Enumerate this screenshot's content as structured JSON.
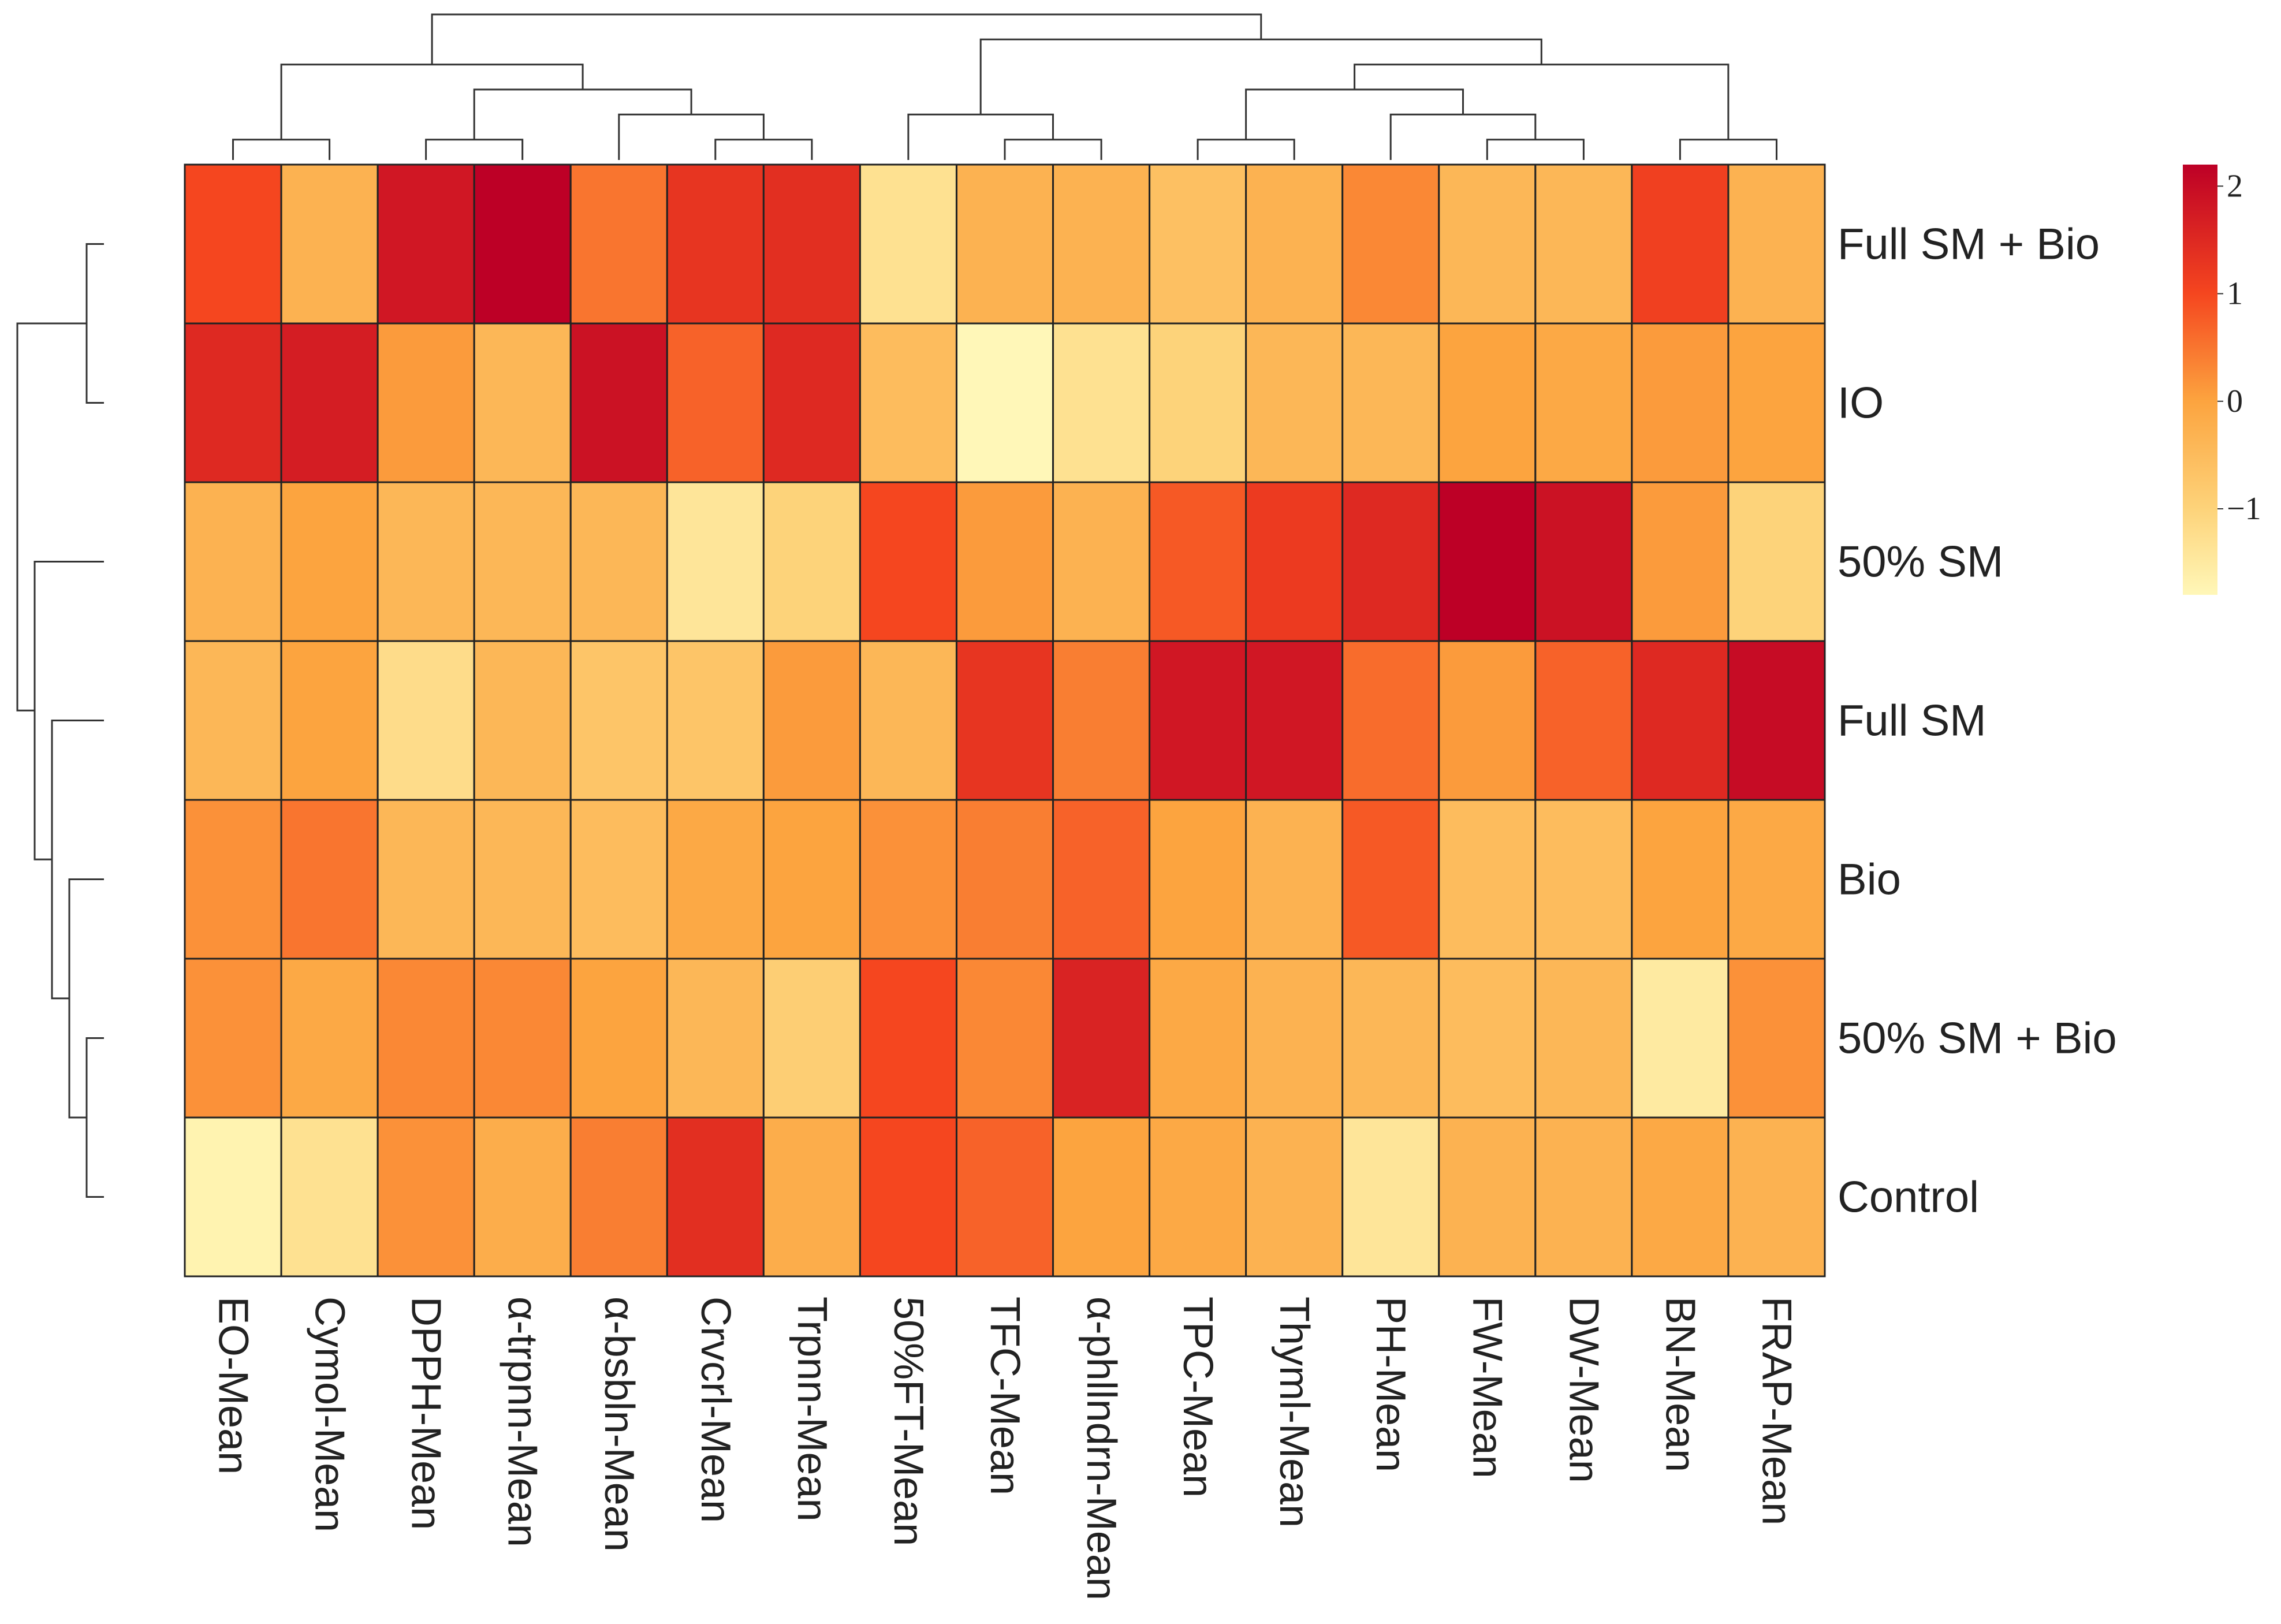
{
  "chart_data": {
    "type": "heatmap",
    "rows": [
      "Full SM + Bio",
      "IO",
      "50% SM",
      "Full SM",
      "Bio",
      "50% SM + Bio",
      "Control"
    ],
    "columns": [
      "EO-Mean",
      "Cymol-Mean",
      "DPPH-Mean",
      "α-trpnn-Mean",
      "α-bsbln-Mean",
      "Crvcrl-Mean",
      "Trpnn-Mean",
      "50%FT-Mean",
      "TFC-Mean",
      "α-phllndrn-Mean",
      "TPC-Mean",
      "Thyml-Mean",
      "PH-Mean",
      "FW-Mean",
      "DW-Mean",
      "BN-Mean",
      "FRAP-Mean"
    ],
    "values": [
      [
        1.0,
        -0.3,
        1.8,
        2.2,
        0.5,
        1.3,
        1.4,
        -1.3,
        -0.3,
        -0.3,
        -0.6,
        -0.3,
        0.3,
        -0.4,
        -0.4,
        1.1,
        -0.3
      ],
      [
        1.5,
        1.7,
        0.1,
        -0.4,
        1.9,
        0.7,
        1.5,
        -0.5,
        -1.9,
        -1.3,
        -1.0,
        -0.4,
        -0.4,
        0.0,
        -0.1,
        0.1,
        0.0
      ],
      [
        -0.3,
        0.0,
        -0.4,
        -0.4,
        -0.4,
        -1.4,
        -1.0,
        1.0,
        0.1,
        -0.3,
        0.8,
        1.2,
        1.5,
        2.2,
        1.9,
        0.1,
        -1.0
      ],
      [
        -0.4,
        0.0,
        -1.2,
        -0.4,
        -0.7,
        -0.7,
        0.1,
        -0.4,
        1.3,
        0.4,
        1.8,
        1.8,
        0.6,
        0.1,
        0.7,
        1.5,
        2.0
      ],
      [
        0.2,
        0.5,
        -0.4,
        -0.4,
        -0.5,
        -0.1,
        0.0,
        0.2,
        0.4,
        0.7,
        0.0,
        -0.3,
        0.8,
        -0.5,
        -0.5,
        0.0,
        -0.1
      ],
      [
        0.2,
        -0.1,
        0.3,
        0.3,
        0.0,
        -0.4,
        -0.9,
        1.0,
        0.3,
        1.6,
        -0.1,
        -0.3,
        -0.4,
        -0.5,
        -0.4,
        -1.5,
        0.2
      ],
      [
        -1.7,
        -1.3,
        0.2,
        -0.2,
        0.4,
        1.4,
        -0.2,
        1.0,
        0.7,
        0.0,
        -0.1,
        -0.3,
        -1.4,
        -0.3,
        -0.3,
        -0.1,
        -0.3
      ]
    ],
    "color_scale": {
      "domain": [
        -1.8,
        -1.0,
        0.0,
        1.0,
        2.2
      ],
      "colors": [
        "#fff7b8",
        "#fdd37a",
        "#fca43f",
        "#f5461f",
        "#bd0026"
      ]
    },
    "legend": {
      "ticks": [
        2,
        1,
        0,
        -1
      ],
      "tick_labels": [
        "2",
        "1",
        "0",
        "−1"
      ],
      "placement": "top-right"
    },
    "row_dendrogram": [
      [
        5,
        6
      ],
      [
        4,
        7
      ],
      [
        3,
        8
      ],
      [
        2,
        9
      ],
      [
        0,
        1
      ],
      [
        11,
        10
      ]
    ],
    "column_dendrogram": [
      [
        0,
        1
      ],
      [
        2,
        3
      ],
      [
        5,
        6
      ],
      [
        4,
        19
      ],
      [
        18,
        20
      ],
      [
        17,
        21
      ],
      [
        8,
        9
      ],
      [
        7,
        23
      ],
      [
        13,
        14
      ],
      [
        12,
        25
      ],
      [
        10,
        11
      ],
      [
        27,
        26
      ],
      [
        15,
        16
      ],
      [
        28,
        29
      ],
      [
        24,
        30
      ],
      [
        22,
        31
      ]
    ],
    "title": "",
    "xlabel": "",
    "ylabel": ""
  }
}
